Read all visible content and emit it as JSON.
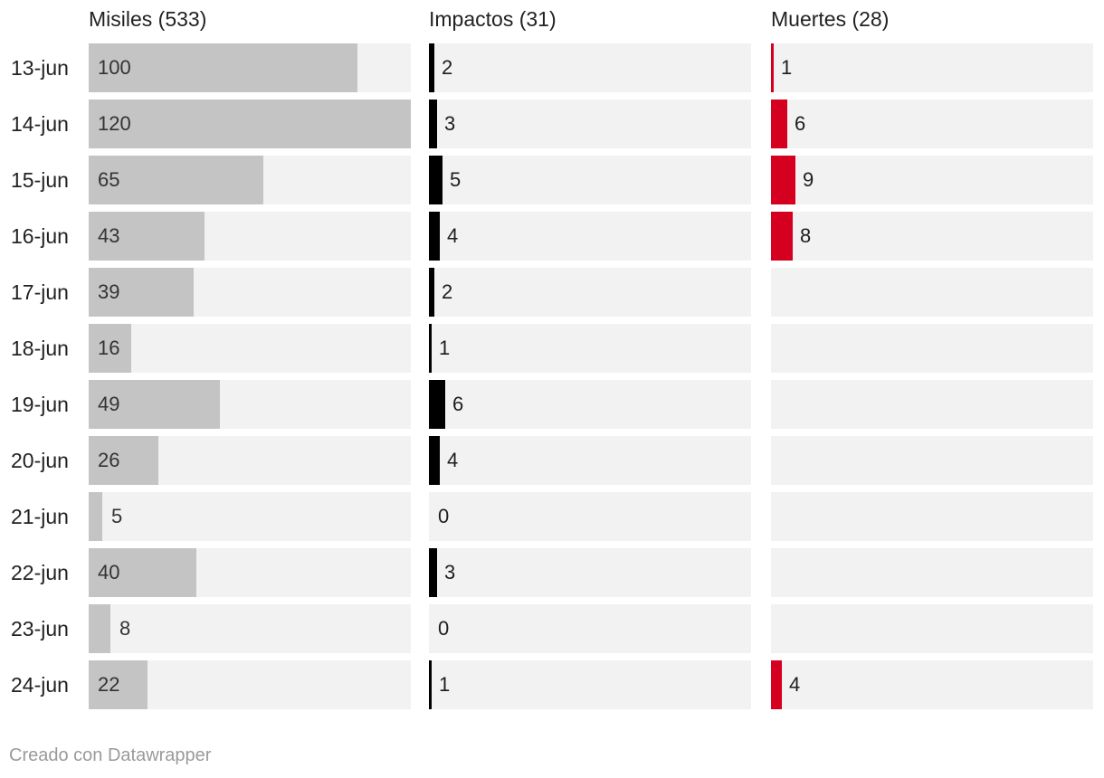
{
  "chart_data": {
    "type": "bar",
    "categories": [
      "13-jun",
      "14-jun",
      "15-jun",
      "16-jun",
      "17-jun",
      "18-jun",
      "19-jun",
      "20-jun",
      "21-jun",
      "22-jun",
      "23-jun",
      "24-jun"
    ],
    "series": [
      {
        "name": "Misiles (533)",
        "values": [
          100,
          120,
          65,
          43,
          39,
          16,
          49,
          26,
          5,
          40,
          8,
          22
        ],
        "color": "#c4c4c4",
        "xmax": 120
      },
      {
        "name": "Impactos (31)",
        "values": [
          2,
          3,
          5,
          4,
          2,
          1,
          6,
          4,
          0,
          3,
          0,
          1
        ],
        "color": "#000000",
        "xmax": 120
      },
      {
        "name": "Muertes (28)",
        "values": [
          1,
          6,
          9,
          8,
          null,
          null,
          null,
          null,
          null,
          null,
          null,
          4
        ],
        "color": "#d50020",
        "xmax": 120
      }
    ],
    "track_color": "#f2f2f2"
  },
  "footer": "Creado con Datawrapper"
}
